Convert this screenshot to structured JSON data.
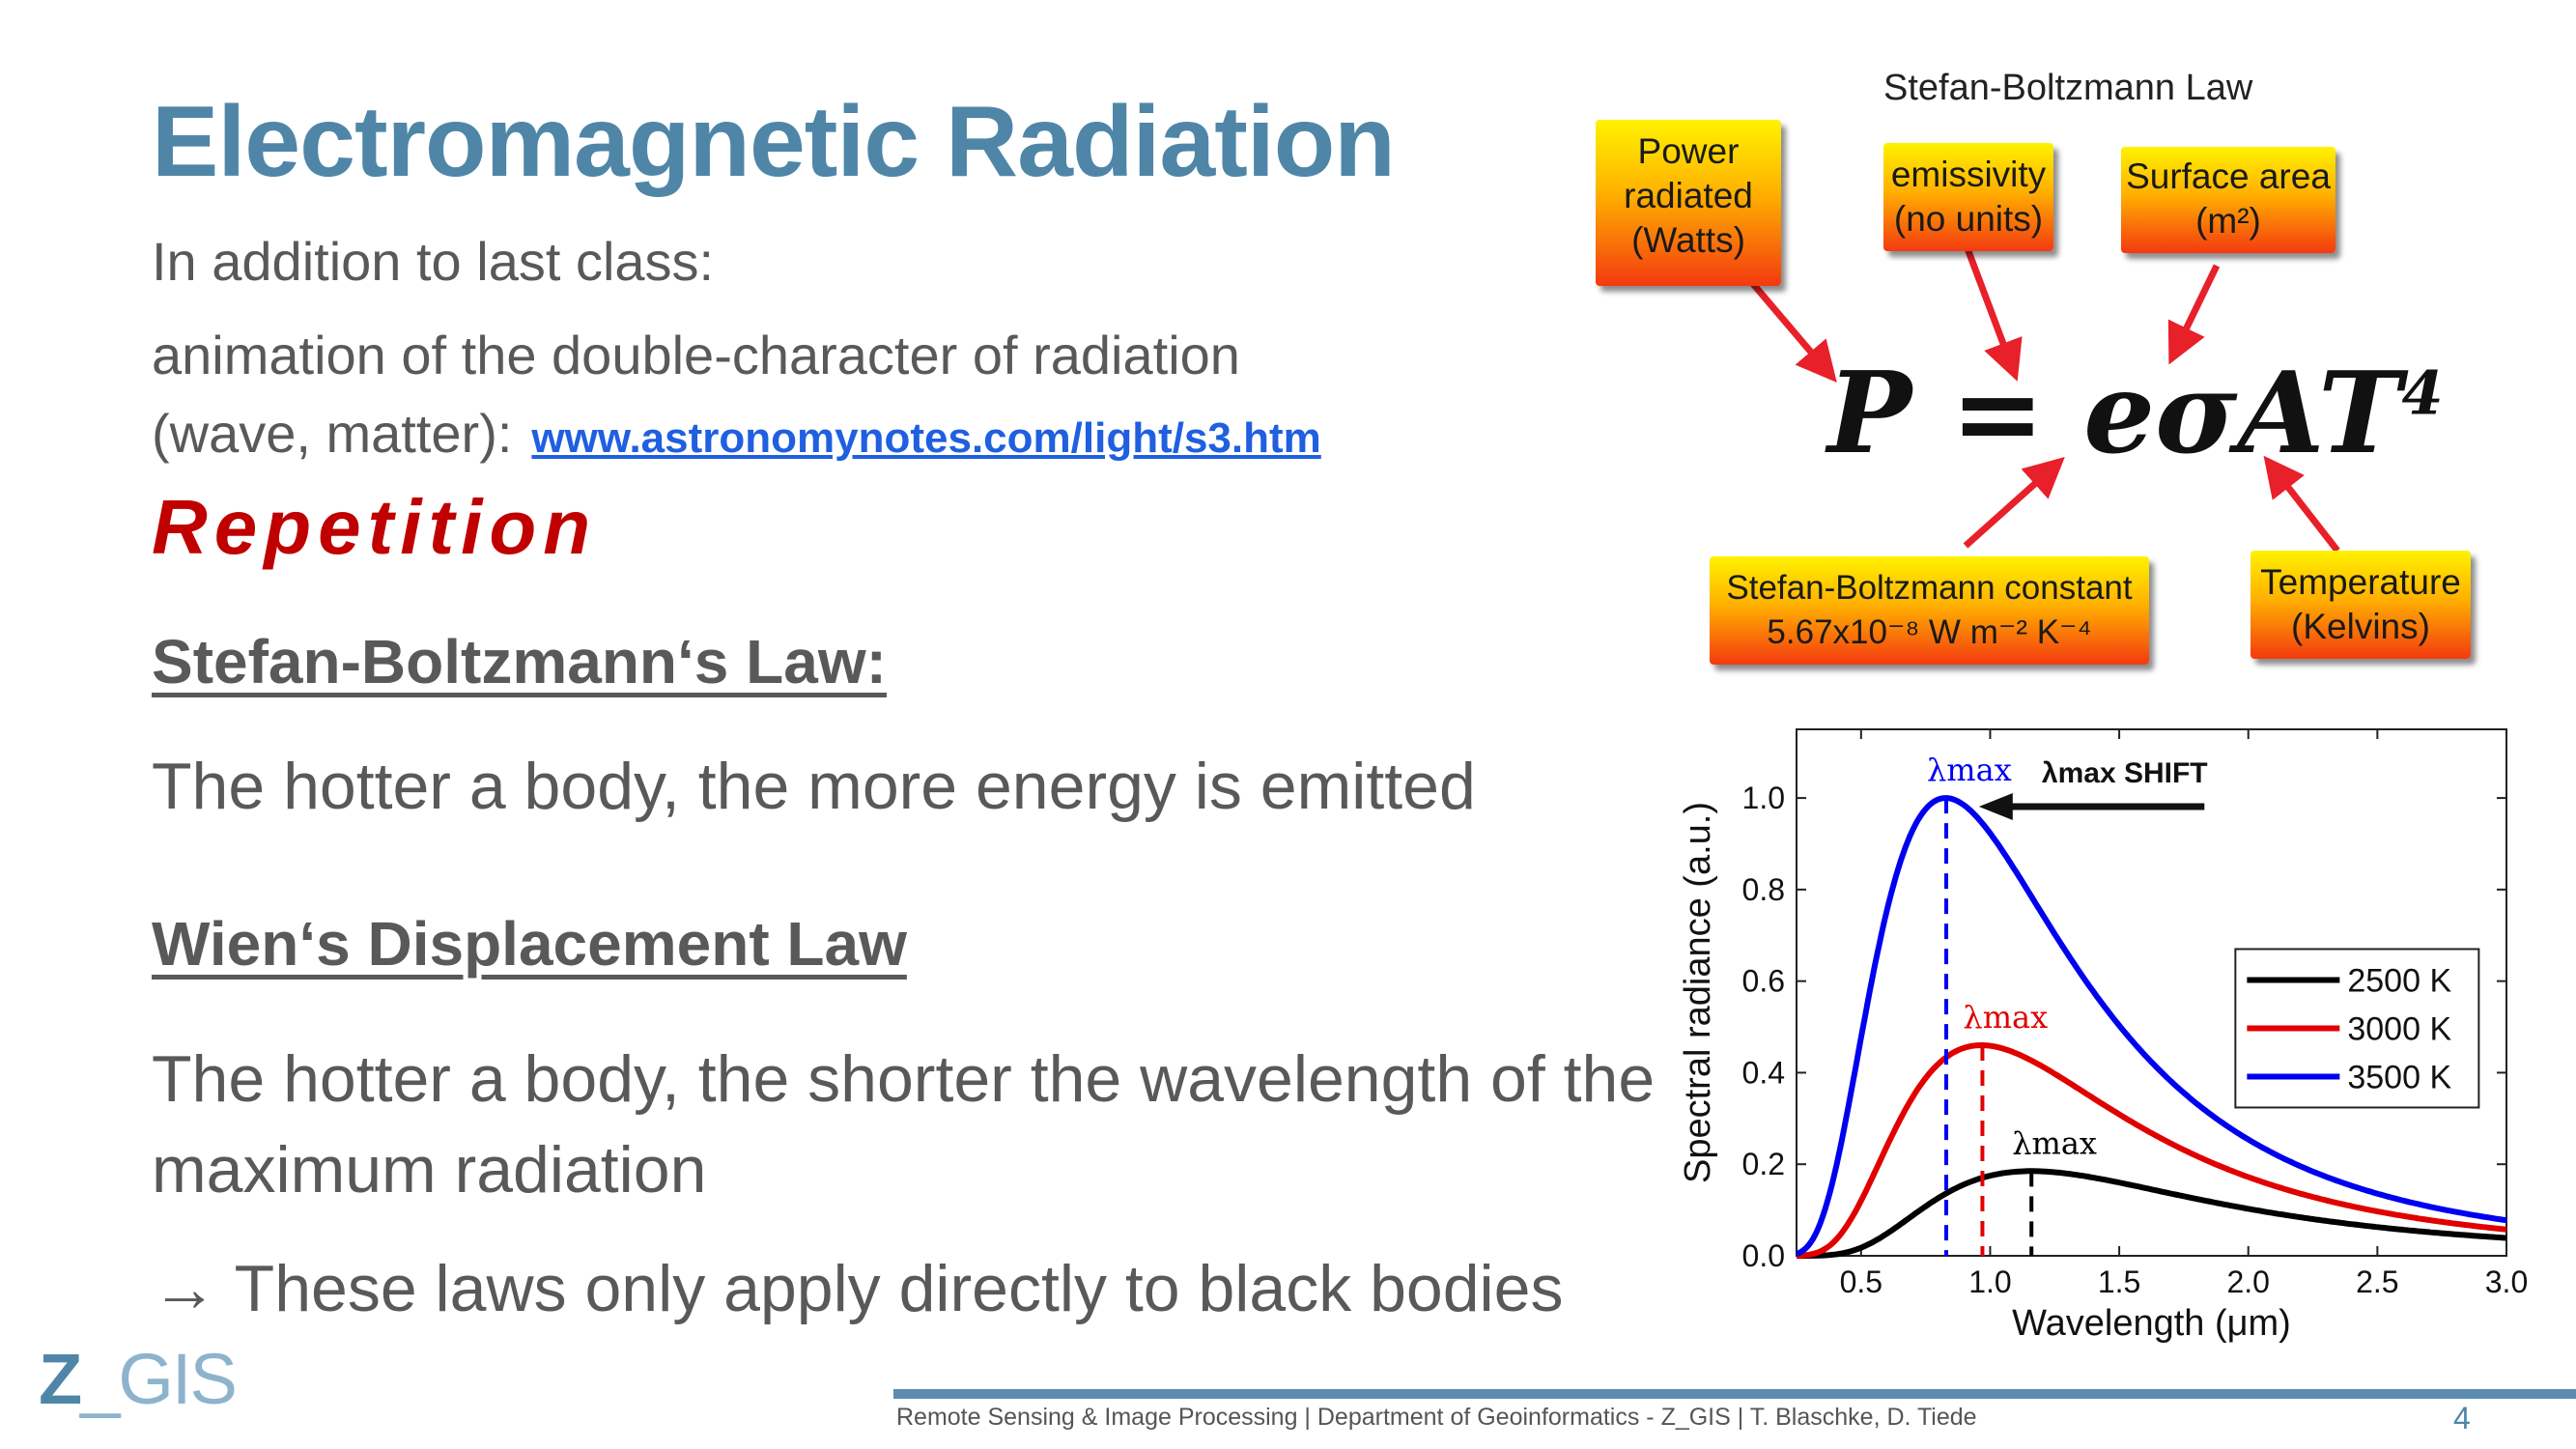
{
  "slide": {
    "title": "Electromagnetic Radiation",
    "line1": "In addition to last class:",
    "line2": "animation of the double-character of radiation",
    "line3": "(wave, matter):",
    "link": "www.astronomynotes.com/light/s3.htm",
    "repetition": "Repetition",
    "sb_heading": "Stefan-Boltzmann‘s Law:",
    "sb_text": "The hotter a body, the more energy is emitted",
    "wien_heading": "Wien‘s Displacement Law",
    "wien_text": "The hotter a body, the shorter the wavelength of the maximum radiation",
    "arrow_symbol": "→",
    "arrow_text": "These laws only apply directly to black bodies"
  },
  "footer": {
    "text": "Remote Sensing & Image Processing | Department of Geoinformatics - Z_GIS | T. Blaschke, D. Tiede",
    "page": "4"
  },
  "logo": {
    "z": "Z",
    "gis": "_GIS"
  },
  "sb_figure": {
    "title": "Stefan-Boltzmann Law",
    "formula": "P = eσAT",
    "formula_exp": "4",
    "box_power": [
      "Power",
      "radiated",
      "(Watts)"
    ],
    "box_emissivity": [
      "emissivity",
      "(no units)"
    ],
    "box_area": [
      "Surface area",
      "(m²)"
    ],
    "box_constant": [
      "Stefan-Boltzmann constant",
      "5.67x10⁻⁸ W m⁻² K⁻⁴"
    ],
    "box_temperature": [
      "Temperature",
      "(Kelvins)"
    ],
    "colors": {
      "box_top": "#fff200",
      "box_bottom": "#f33a10",
      "arrow": "#e8202a"
    }
  },
  "chart_data": {
    "type": "line",
    "title": "",
    "xlabel": "Wavelength (μm)",
    "ylabel": "Spectral radiance (a.u.)",
    "xlim": [
      0.25,
      3.0
    ],
    "ylim": [
      0.0,
      1.15
    ],
    "xticks": [
      "0.5",
      "1.0",
      "1.5",
      "2.0",
      "2.5",
      "3.0"
    ],
    "yticks": [
      "0.0",
      "0.2",
      "0.4",
      "0.6",
      "0.8",
      "1.0"
    ],
    "legend_position": "center-right",
    "shift_label": "λmax SHIFT",
    "peak_label": "λmax",
    "series": [
      {
        "name": "2500 K",
        "color": "#000000",
        "temperature": 2500,
        "peak_x": 1.16,
        "peak_y": 0.185
      },
      {
        "name": "3000 K",
        "color": "#e00000",
        "temperature": 3000,
        "peak_x": 0.97,
        "peak_y": 0.46
      },
      {
        "name": "3500 K",
        "color": "#0000f0",
        "temperature": 3500,
        "peak_x": 0.83,
        "peak_y": 1.0
      }
    ]
  }
}
